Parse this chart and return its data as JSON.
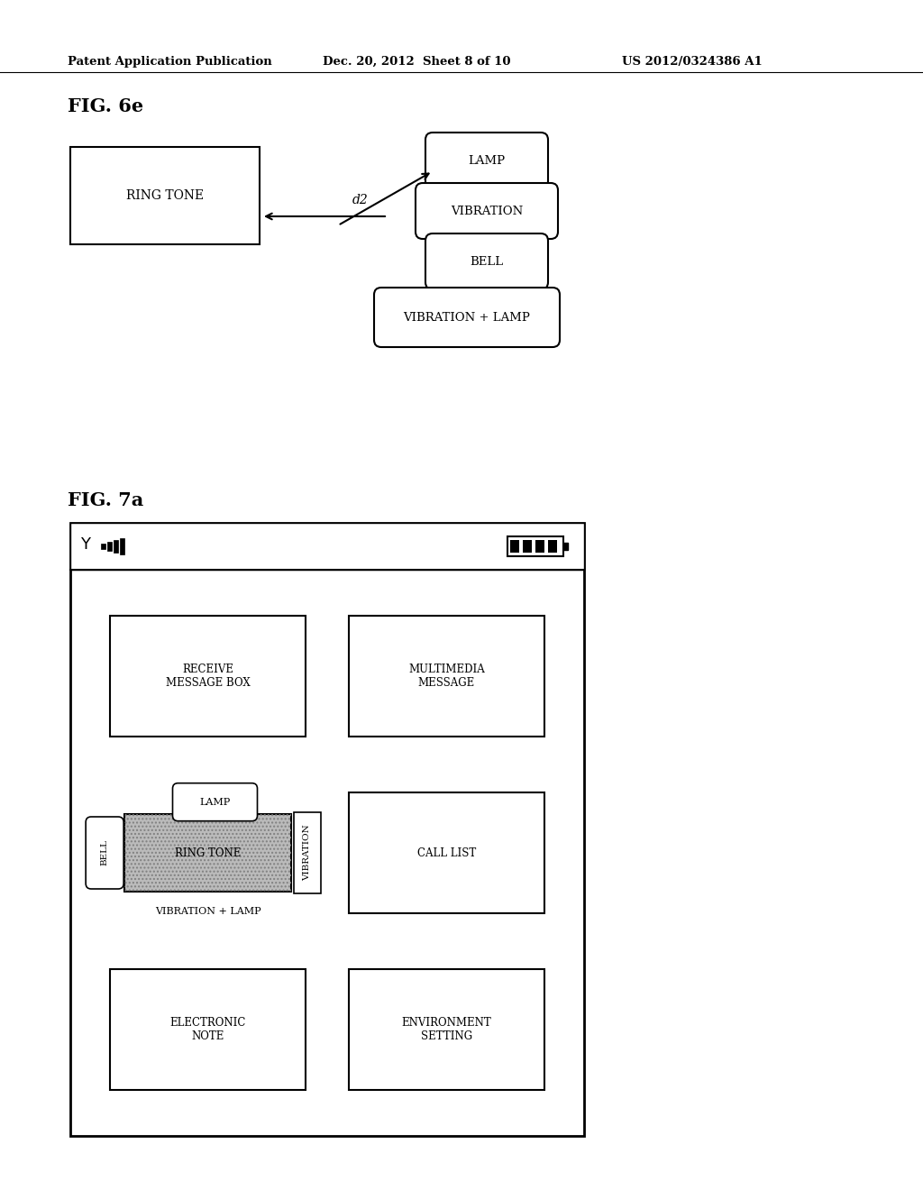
{
  "bg_color": "#ffffff",
  "header_text": "Patent Application Publication",
  "header_date": "Dec. 20, 2012  Sheet 8 of 10",
  "header_patent": "US 2012/0324386 A1",
  "fig6e_label": "FIG. 6e",
  "fig7a_label": "FIG. 7a"
}
